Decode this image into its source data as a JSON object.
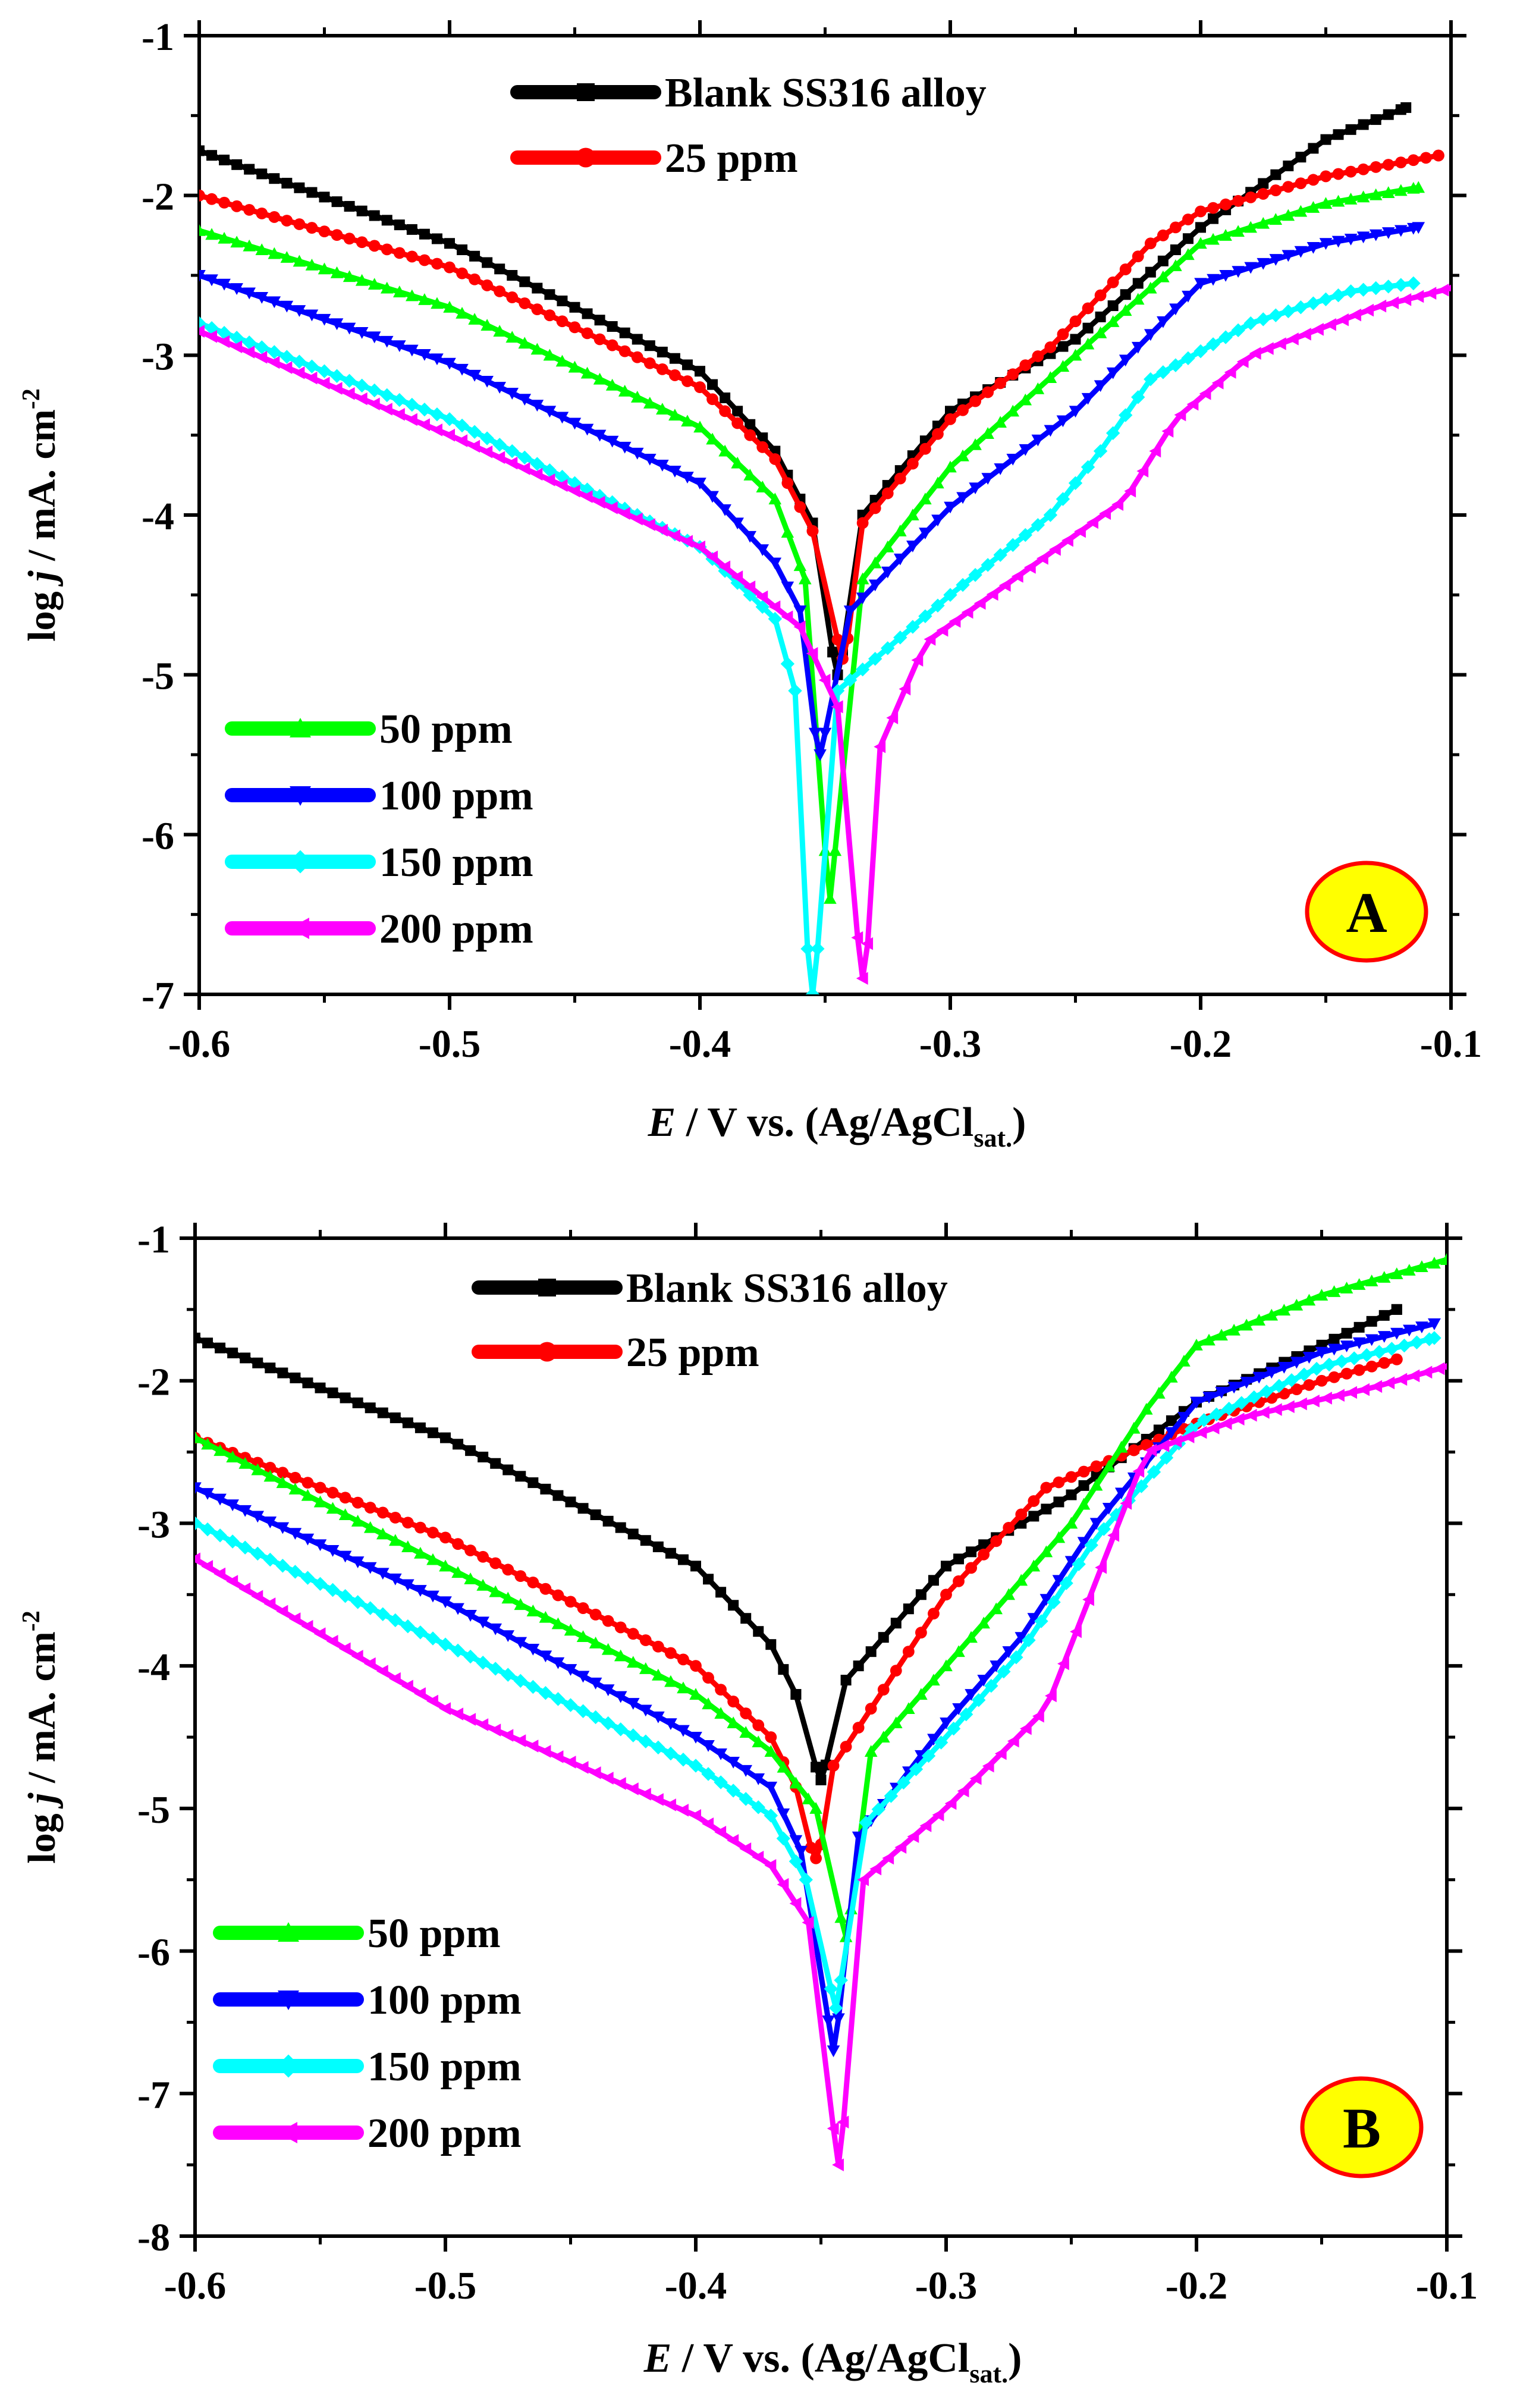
{
  "figure": {
    "panels": [
      {
        "label": "A",
        "badge_bg": "#ffff00",
        "badge_border": "#ff0000"
      },
      {
        "label": "B",
        "badge_bg": "#ffff00",
        "badge_border": "#ff0000"
      }
    ]
  },
  "chart_data": [
    {
      "type": "line",
      "panel_label": "A",
      "title": "",
      "xlabel": "E / V vs. (Ag/AgCl sat.)",
      "ylabel": "log j / mA. cm^-2",
      "xlabel_parts": {
        "e": "E",
        "rest": " / V vs. (Ag/AgCl",
        "sub": "sat.",
        "close": ")"
      },
      "ylabel_parts": {
        "log": "log ",
        "j": "j",
        "rest": " /  mA. cm",
        "sup": "-2"
      },
      "xlim": [
        -0.6,
        -0.1
      ],
      "ylim": [
        -7,
        -1
      ],
      "xticks": [
        -0.6,
        -0.5,
        -0.4,
        -0.3,
        -0.2,
        -0.1
      ],
      "yticks": [
        -7,
        -6,
        -5,
        -4,
        -3,
        -2,
        -1
      ],
      "xtick_labels": [
        "-0.6",
        "-0.5",
        "-0.4",
        "-0.3",
        "-0.2",
        "-0.1"
      ],
      "ytick_labels": [
        "-7",
        "-6",
        "-5",
        "-4",
        "-3",
        "-2",
        "-1"
      ],
      "grid": false,
      "legend_groups": [
        {
          "placement": "top-center",
          "series": [
            "Blank SS316 alloy",
            "25 ppm"
          ]
        },
        {
          "placement": "bottom-left",
          "series": [
            "50 ppm",
            "100 ppm",
            "150 ppm",
            "200 ppm"
          ]
        }
      ],
      "series": [
        {
          "name": "Blank SS316 alloy",
          "color": "#000000",
          "marker": "square",
          "ecorr": -0.345,
          "jmin": -5.0,
          "anodic": [
            [
              -0.335,
              -4.0
            ],
            [
              -0.3,
              -3.35
            ],
            [
              -0.25,
              -2.9
            ],
            [
              -0.2,
              -2.2
            ],
            [
              -0.15,
              -1.65
            ],
            [
              -0.118,
              -1.45
            ]
          ],
          "cathodic": [
            [
              -0.6,
              -1.72
            ],
            [
              -0.5,
              -2.3
            ],
            [
              -0.4,
              -3.1
            ],
            [
              -0.37,
              -3.6
            ],
            [
              -0.355,
              -4.05
            ]
          ]
        },
        {
          "name": "25 ppm",
          "color": "#ff0000",
          "marker": "circle",
          "ecorr": -0.343,
          "jmin": -4.9,
          "anodic": [
            [
              -0.335,
              -4.05
            ],
            [
              -0.3,
              -3.4
            ],
            [
              -0.26,
              -2.95
            ],
            [
              -0.22,
              -2.3
            ],
            [
              -0.2,
              -2.1
            ],
            [
              -0.15,
              -1.88
            ],
            [
              -0.105,
              -1.75
            ]
          ],
          "cathodic": [
            [
              -0.6,
              -2.0
            ],
            [
              -0.5,
              -2.45
            ],
            [
              -0.4,
              -3.2
            ],
            [
              -0.37,
              -3.65
            ],
            [
              -0.355,
              -4.1
            ]
          ]
        },
        {
          "name": "50 ppm",
          "color": "#00ff00",
          "marker": "triangle-up",
          "ecorr": -0.348,
          "jmin": -6.4,
          "anodic": [
            [
              -0.335,
              -4.4
            ],
            [
              -0.3,
              -3.7
            ],
            [
              -0.25,
              -3.0
            ],
            [
              -0.2,
              -2.3
            ],
            [
              -0.15,
              -2.05
            ],
            [
              -0.113,
              -1.95
            ]
          ],
          "cathodic": [
            [
              -0.6,
              -2.22
            ],
            [
              -0.5,
              -2.7
            ],
            [
              -0.4,
              -3.45
            ],
            [
              -0.37,
              -3.9
            ],
            [
              -0.358,
              -4.4
            ]
          ]
        },
        {
          "name": "100 ppm",
          "color": "#0000ff",
          "marker": "triangle-down",
          "ecorr": -0.352,
          "jmin": -5.5,
          "anodic": [
            [
              -0.34,
              -4.6
            ],
            [
              -0.3,
              -3.95
            ],
            [
              -0.25,
              -3.35
            ],
            [
              -0.2,
              -2.55
            ],
            [
              -0.15,
              -2.3
            ],
            [
              -0.113,
              -2.2
            ]
          ],
          "cathodic": [
            [
              -0.6,
              -2.5
            ],
            [
              -0.5,
              -3.05
            ],
            [
              -0.4,
              -3.8
            ],
            [
              -0.37,
              -4.3
            ],
            [
              -0.36,
              -4.6
            ]
          ]
        },
        {
          "name": "150 ppm",
          "color": "#00ffff",
          "marker": "diamond",
          "ecorr": -0.355,
          "jmin": -7.0,
          "anodic": [
            [
              -0.345,
              -5.1
            ],
            [
              -0.3,
              -4.5
            ],
            [
              -0.26,
              -4.0
            ],
            [
              -0.24,
              -3.6
            ],
            [
              -0.22,
              -3.15
            ],
            [
              -0.18,
              -2.8
            ],
            [
              -0.14,
              -2.6
            ],
            [
              -0.115,
              -2.55
            ]
          ],
          "cathodic": [
            [
              -0.6,
              -2.8
            ],
            [
              -0.5,
              -3.4
            ],
            [
              -0.4,
              -4.2
            ],
            [
              -0.37,
              -4.65
            ],
            [
              -0.362,
              -5.1
            ]
          ]
        },
        {
          "name": "200 ppm",
          "color": "#ff00ff",
          "marker": "triangle-left",
          "ecorr": -0.335,
          "jmin": -6.9,
          "anodic": [
            [
              -0.328,
              -5.45
            ],
            [
              -0.31,
              -4.8
            ],
            [
              -0.27,
              -4.35
            ],
            [
              -0.23,
              -3.9
            ],
            [
              -0.21,
              -3.4
            ],
            [
              -0.18,
              -3.0
            ],
            [
              -0.13,
              -2.7
            ],
            [
              -0.1,
              -2.58
            ]
          ],
          "cathodic": [
            [
              -0.6,
              -2.85
            ],
            [
              -0.5,
              -3.5
            ],
            [
              -0.4,
              -4.2
            ],
            [
              -0.36,
              -4.7
            ],
            [
              -0.345,
              -5.2
            ]
          ]
        }
      ]
    },
    {
      "type": "line",
      "panel_label": "B",
      "title": "",
      "xlabel": "E / V vs. (Ag/AgCl sat.)",
      "ylabel": "log j / mA. cm^-2",
      "xlabel_parts": {
        "e": "E",
        "rest": " / V vs. (Ag/AgCl",
        "sub": "sat.",
        "close": ")"
      },
      "ylabel_parts": {
        "log": "log ",
        "j": "j",
        "rest": " /  mA. cm",
        "sup": "-2"
      },
      "xlim": [
        -0.6,
        -0.1
      ],
      "ylim": [
        -8,
        -1
      ],
      "xticks": [
        -0.6,
        -0.5,
        -0.4,
        -0.3,
        -0.2,
        -0.1
      ],
      "yticks": [
        -8,
        -7,
        -6,
        -5,
        -4,
        -3,
        -2,
        -1
      ],
      "xtick_labels": [
        "-0.6",
        "-0.5",
        "-0.4",
        "-0.3",
        "-0.2",
        "-0.1"
      ],
      "ytick_labels": [
        "-8",
        "-7",
        "-6",
        "-5",
        "-4",
        "-3",
        "-2",
        "-1"
      ],
      "grid": false,
      "legend_groups": [
        {
          "placement": "top-center",
          "series": [
            "Blank SS316 alloy",
            "25 ppm"
          ]
        },
        {
          "placement": "bottom-left",
          "series": [
            "50 ppm",
            "100 ppm",
            "150 ppm",
            "200 ppm"
          ]
        }
      ],
      "series": [
        {
          "name": "Blank SS316 alloy",
          "color": "#000000",
          "marker": "square",
          "ecorr": -0.35,
          "jmin": -4.8,
          "anodic": [
            [
              -0.34,
              -4.1
            ],
            [
              -0.3,
              -3.3
            ],
            [
              -0.25,
              -2.8
            ],
            [
              -0.2,
              -2.15
            ],
            [
              -0.15,
              -1.75
            ],
            [
              -0.12,
              -1.5
            ]
          ],
          "cathodic": [
            [
              -0.6,
              -1.7
            ],
            [
              -0.5,
              -2.4
            ],
            [
              -0.4,
              -3.3
            ],
            [
              -0.37,
              -3.85
            ],
            [
              -0.36,
              -4.2
            ]
          ]
        },
        {
          "name": "25 ppm",
          "color": "#ff0000",
          "marker": "circle",
          "ecorr": -0.352,
          "jmin": -5.35,
          "anodic": [
            [
              -0.345,
              -4.7
            ],
            [
              -0.3,
              -3.5
            ],
            [
              -0.26,
              -2.75
            ],
            [
              -0.2,
              -2.3
            ],
            [
              -0.15,
              -2.0
            ],
            [
              -0.12,
              -1.85
            ]
          ],
          "cathodic": [
            [
              -0.6,
              -2.4
            ],
            [
              -0.5,
              -3.1
            ],
            [
              -0.4,
              -4.0
            ],
            [
              -0.37,
              -4.5
            ],
            [
              -0.36,
              -4.85
            ]
          ]
        },
        {
          "name": "50 ppm",
          "color": "#00ff00",
          "marker": "triangle-up",
          "ecorr": -0.34,
          "jmin": -5.9,
          "anodic": [
            [
              -0.33,
              -4.6
            ],
            [
              -0.29,
              -3.8
            ],
            [
              -0.25,
              -3.0
            ],
            [
              -0.22,
              -2.2
            ],
            [
              -0.2,
              -1.75
            ],
            [
              -0.15,
              -1.4
            ],
            [
              -0.1,
              -1.15
            ]
          ],
          "cathodic": [
            [
              -0.6,
              -2.4
            ],
            [
              -0.5,
              -3.3
            ],
            [
              -0.4,
              -4.2
            ],
            [
              -0.37,
              -4.6
            ],
            [
              -0.352,
              -5.0
            ]
          ]
        },
        {
          "name": "100 ppm",
          "color": "#0000ff",
          "marker": "triangle-down",
          "ecorr": -0.345,
          "jmin": -6.7,
          "anodic": [
            [
              -0.335,
              -5.2
            ],
            [
              -0.3,
              -4.4
            ],
            [
              -0.27,
              -3.8
            ],
            [
              -0.24,
              -3.0
            ],
            [
              -0.2,
              -2.15
            ],
            [
              -0.15,
              -1.8
            ],
            [
              -0.105,
              -1.6
            ]
          ],
          "cathodic": [
            [
              -0.6,
              -2.75
            ],
            [
              -0.5,
              -3.55
            ],
            [
              -0.4,
              -4.5
            ],
            [
              -0.37,
              -4.85
            ],
            [
              -0.358,
              -5.3
            ]
          ]
        },
        {
          "name": "150 ppm",
          "color": "#00ffff",
          "marker": "diamond",
          "ecorr": -0.344,
          "jmin": -6.4,
          "anodic": [
            [
              -0.332,
              -5.1
            ],
            [
              -0.3,
              -4.5
            ],
            [
              -0.27,
              -3.9
            ],
            [
              -0.24,
              -3.1
            ],
            [
              -0.2,
              -2.3
            ],
            [
              -0.15,
              -1.9
            ],
            [
              -0.105,
              -1.7
            ]
          ],
          "cathodic": [
            [
              -0.6,
              -3.0
            ],
            [
              -0.5,
              -3.85
            ],
            [
              -0.4,
              -4.7
            ],
            [
              -0.37,
              -5.05
            ],
            [
              -0.356,
              -5.5
            ]
          ]
        },
        {
          "name": "200 ppm",
          "color": "#ff00ff",
          "marker": "triangle-left",
          "ecorr": -0.343,
          "jmin": -7.5,
          "anodic": [
            [
              -0.333,
              -5.5
            ],
            [
              -0.3,
              -5.0
            ],
            [
              -0.26,
              -4.3
            ],
            [
              -0.24,
              -3.4
            ],
            [
              -0.22,
              -2.5
            ],
            [
              -0.18,
              -2.25
            ],
            [
              -0.13,
              -2.05
            ],
            [
              -0.1,
              -1.9
            ]
          ],
          "cathodic": [
            [
              -0.6,
              -3.25
            ],
            [
              -0.5,
              -4.3
            ],
            [
              -0.4,
              -5.05
            ],
            [
              -0.37,
              -5.4
            ],
            [
              -0.355,
              -5.8
            ]
          ]
        }
      ]
    }
  ]
}
